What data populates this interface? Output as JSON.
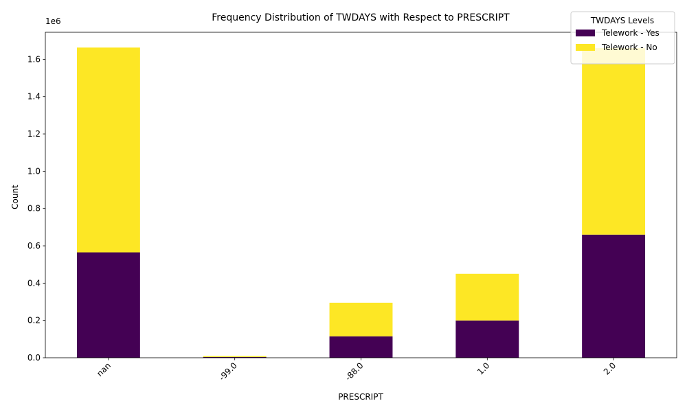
{
  "chart_data": {
    "type": "bar",
    "stacked": true,
    "title": "Frequency Distribution of TWDAYS with Respect to PRESCRIPT",
    "xlabel": "PRESCRIPT",
    "ylabel": "Count",
    "y_offset_label": "1e6",
    "categories": [
      "nan",
      "-99.0",
      "-88.0",
      "1.0",
      "2.0"
    ],
    "series": [
      {
        "name": "Telework - Yes",
        "color": "#440154",
        "values": [
          565000,
          4000,
          115000,
          200000,
          660000
        ]
      },
      {
        "name": "Telework - No",
        "color": "#fde725",
        "values": [
          1098000,
          5000,
          180000,
          250000,
          1000000
        ]
      }
    ],
    "ylim": [
      0,
      1745000
    ],
    "yticks": [
      0,
      200000,
      400000,
      600000,
      800000,
      1000000,
      1200000,
      1400000,
      1600000
    ],
    "ytick_labels": [
      "0.0",
      "0.2",
      "0.4",
      "0.6",
      "0.8",
      "1.0",
      "1.2",
      "1.4",
      "1.6"
    ],
    "legend": {
      "title": "TWDAYS Levels",
      "placement": "top-right"
    },
    "grid": false
  }
}
